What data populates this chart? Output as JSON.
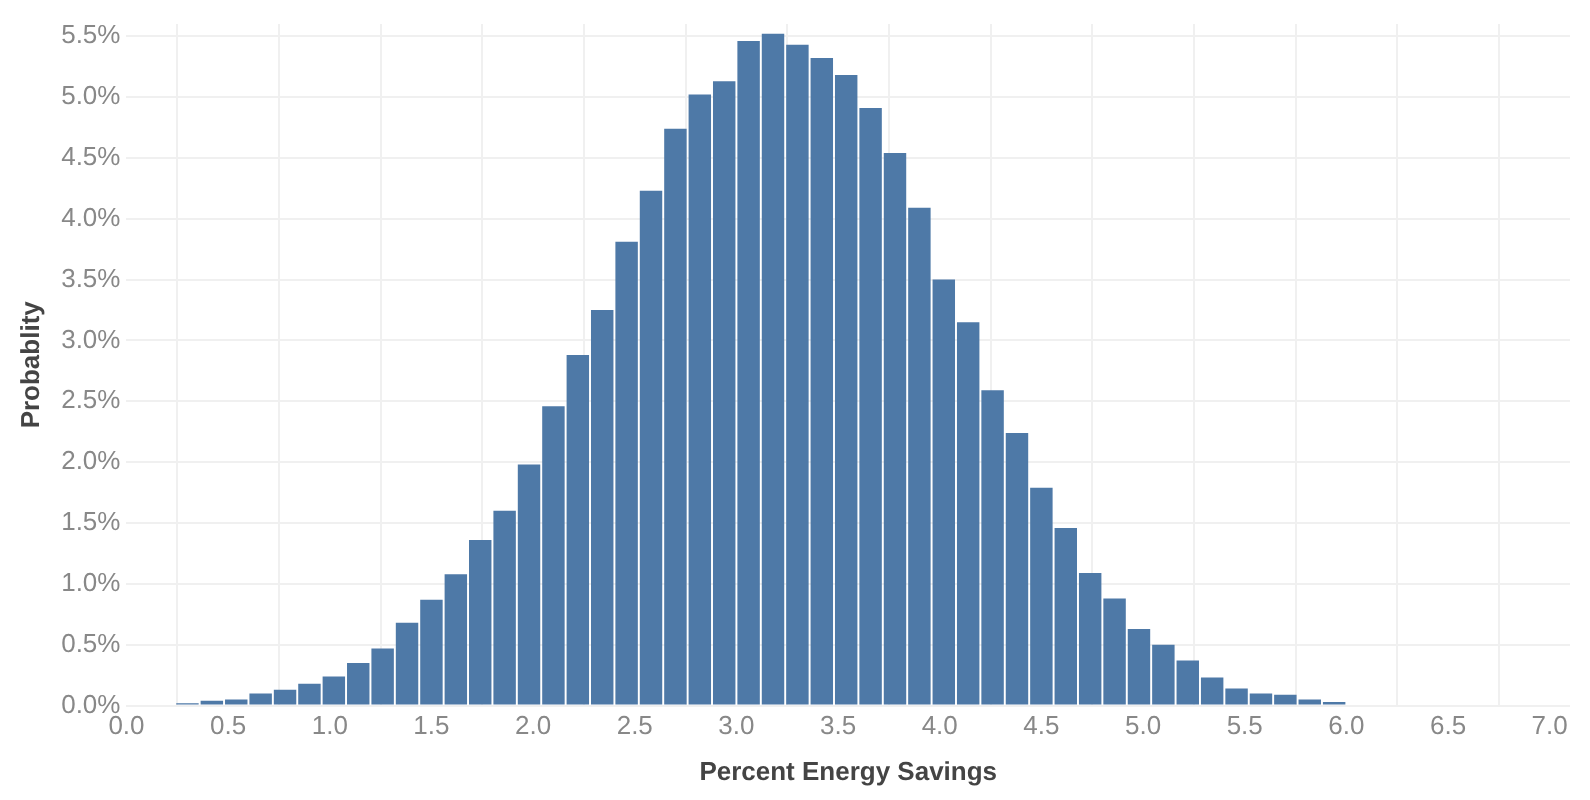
{
  "chart_data": {
    "type": "histogram",
    "xlabel": "Percent Energy Savings",
    "ylabel": "Probablity",
    "color": "#4e79a7",
    "grid": true,
    "bins": [
      0,
      0.12,
      0.24,
      0.36,
      0.48,
      0.6,
      0.72,
      0.84,
      0.96,
      1.08,
      1.2,
      1.32,
      1.44,
      1.56,
      1.68,
      1.8,
      1.92,
      2.04,
      2.16,
      2.28,
      2.4,
      2.52,
      2.64,
      2.76,
      2.88,
      3,
      3.12,
      3.24,
      3.36,
      3.48,
      3.6,
      3.72,
      3.84,
      3.96,
      4.08,
      4.2,
      4.32,
      4.44,
      4.56,
      4.68,
      4.8,
      4.92,
      5.04,
      5.16,
      5.28,
      5.4,
      5.52,
      5.64,
      5.76,
      5.88,
      6,
      6.12,
      6.24,
      6.36,
      6.48,
      6.6
    ],
    "values": [
      0.01,
      0.01,
      0.02,
      0.04,
      0.05,
      0.1,
      0.13,
      0.18,
      0.24,
      0.35,
      0.47,
      0.68,
      0.87,
      1.08,
      1.36,
      1.6,
      1.98,
      2.46,
      2.88,
      3.25,
      3.81,
      4.23,
      4.74,
      5.02,
      5.13,
      5.46,
      5.52,
      5.43,
      5.32,
      5.18,
      4.91,
      4.54,
      4.09,
      3.5,
      3.15,
      2.59,
      2.24,
      1.79,
      1.46,
      1.09,
      0.88,
      0.63,
      0.5,
      0.37,
      0.23,
      0.14,
      0.1,
      0.09,
      0.05,
      0.03,
      0.01,
      0.01,
      0.01,
      0,
      0.01
    ],
    "xlim": [
      0,
      7.1
    ],
    "ylim": [
      0,
      5.6
    ],
    "xticks": [
      {
        "value": 0,
        "label": "0.0"
      },
      {
        "value": 0.5,
        "label": "0.5"
      },
      {
        "value": 1,
        "label": "1.0"
      },
      {
        "value": 1.5,
        "label": "1.5"
      },
      {
        "value": 2,
        "label": "2.0"
      },
      {
        "value": 2.5,
        "label": "2.5"
      },
      {
        "value": 3,
        "label": "3.0"
      },
      {
        "value": 3.5,
        "label": "3.5"
      },
      {
        "value": 4,
        "label": "4.0"
      },
      {
        "value": 4.5,
        "label": "4.5"
      },
      {
        "value": 5,
        "label": "5.0"
      },
      {
        "value": 5.5,
        "label": "5.5"
      },
      {
        "value": 6,
        "label": "6.0"
      },
      {
        "value": 6.5,
        "label": "6.5"
      },
      {
        "value": 7,
        "label": "7.0"
      }
    ],
    "yticks": [
      {
        "value": 0,
        "label": "0.0%"
      },
      {
        "value": 0.5,
        "label": "0.5%"
      },
      {
        "value": 1,
        "label": "1.0%"
      },
      {
        "value": 1.5,
        "label": "1.5%"
      },
      {
        "value": 2,
        "label": "2.0%"
      },
      {
        "value": 2.5,
        "label": "2.5%"
      },
      {
        "value": 3,
        "label": "3.0%"
      },
      {
        "value": 3.5,
        "label": "3.5%"
      },
      {
        "value": 4,
        "label": "4.0%"
      },
      {
        "value": 4.5,
        "label": "4.5%"
      },
      {
        "value": 5,
        "label": "5.0%"
      },
      {
        "value": 5.5,
        "label": "5.5%"
      }
    ]
  }
}
